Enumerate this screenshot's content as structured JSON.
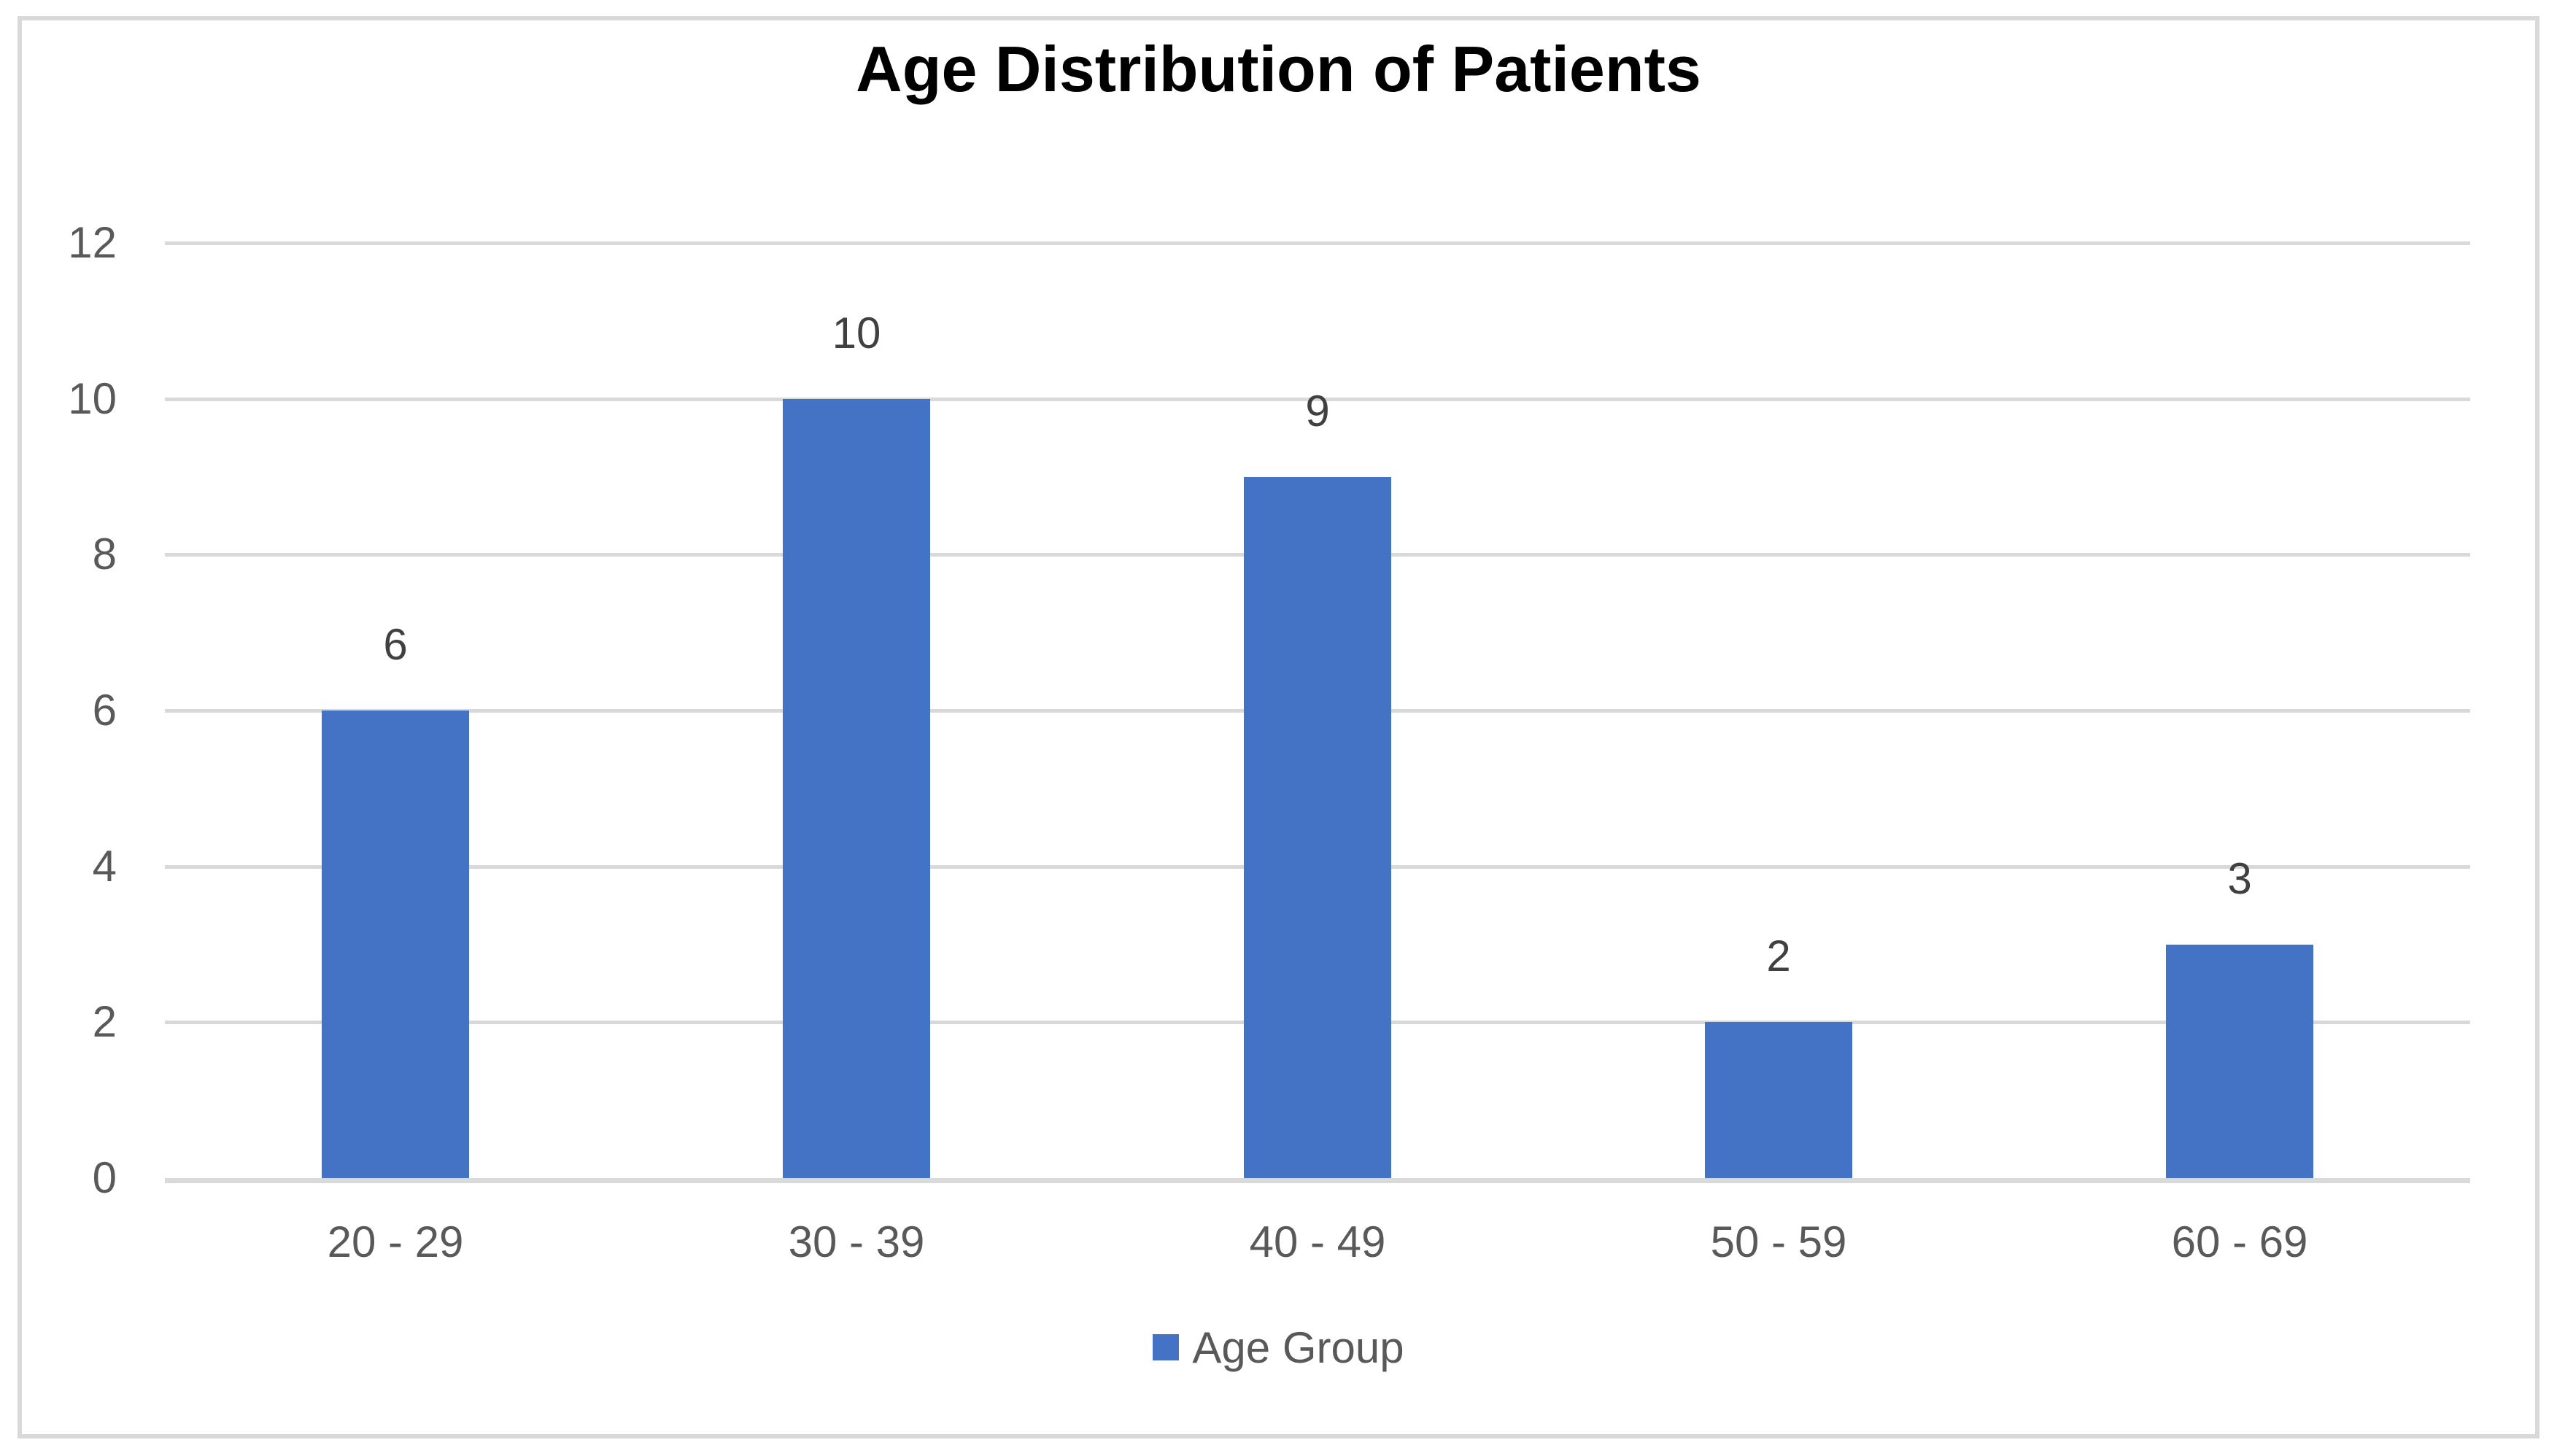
{
  "chart_data": {
    "type": "bar",
    "title": "Age Distribution of Patients",
    "categories": [
      "20 - 29",
      "30 - 39",
      "40 - 49",
      "50 - 59",
      "60 - 69"
    ],
    "series": [
      {
        "name": "Age Group",
        "values": [
          6,
          10,
          9,
          2,
          3
        ]
      }
    ],
    "data_labels": [
      6,
      10,
      9,
      2,
      3
    ],
    "y_ticks": [
      0,
      2,
      4,
      6,
      8,
      10,
      12
    ],
    "ylim": [
      0,
      12
    ],
    "xlabel": "",
    "ylabel": "",
    "grid": "horizontal",
    "legend": {
      "position": "bottom",
      "label": "Age Group"
    },
    "colors": {
      "bar": "#4472C4",
      "gridline": "#D9D9D9",
      "baseline": "#D9D9D9",
      "axis_text": "#595959",
      "data_label_text": "#404040",
      "title_text": "#000000",
      "frame_border": "#D9D9D9",
      "background": "#FFFFFF"
    }
  }
}
